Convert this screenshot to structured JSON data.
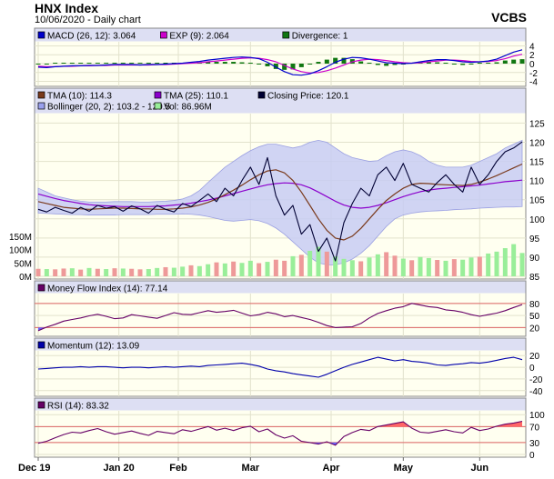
{
  "header": {
    "title": "HNX Index",
    "subtitle": "10/06/2020 - Daily chart",
    "brand": "VCBS"
  },
  "colors": {
    "macd": "#0000cc",
    "exp": "#cc00cc",
    "divergence": "#117711",
    "tma10": "#7a3a1c",
    "tma25": "#8b00cc",
    "close": "#000033",
    "bollinger": "#9aa0ee",
    "vol_up": "#99ee99",
    "vol_down": "#ee9999",
    "mfi": "#660066",
    "momentum": "#0000aa",
    "rsi": "#660066",
    "ref_line": "#dd6666",
    "hilite": "#ff6666",
    "lowlite": "#6666ff"
  },
  "chart_data": [
    {
      "id": "macd",
      "type": "line",
      "legend": [
        {
          "label": "MACD (26, 12): 3.064",
          "color_key": "macd"
        },
        {
          "label": "EXP (9): 2.064",
          "color_key": "exp"
        },
        {
          "label": "Divergence: 1",
          "color_key": "divergence"
        }
      ],
      "ylim": [
        -4.5,
        4.5
      ],
      "y_ticks": [
        4,
        2,
        0,
        -2,
        -4
      ],
      "macd": [
        -0.8,
        -0.9,
        -0.7,
        -0.6,
        -0.5,
        -0.5,
        -0.4,
        -0.4,
        -0.3,
        -0.2,
        -0.2,
        -0.2,
        -0.3,
        -0.2,
        -0.2,
        -0.1,
        0.0,
        0.1,
        0.3,
        0.5,
        0.8,
        1.0,
        1.2,
        1.4,
        1.5,
        1.4,
        1.1,
        0.3,
        -0.8,
        -1.8,
        -2.5,
        -2.6,
        -2.3,
        -1.6,
        -0.7,
        0.3,
        1.0,
        1.4,
        1.3,
        1.0,
        0.6,
        0.2,
        0.1,
        0.0,
        0.1,
        0.4,
        0.7,
        0.9,
        0.9,
        0.7,
        0.4,
        0.3,
        0.4,
        0.6,
        1.0,
        1.8,
        2.6,
        3.1
      ],
      "exp": [
        -0.6,
        -0.7,
        -0.7,
        -0.6,
        -0.6,
        -0.5,
        -0.5,
        -0.4,
        -0.4,
        -0.3,
        -0.3,
        -0.3,
        -0.3,
        -0.3,
        -0.2,
        -0.2,
        -0.1,
        0.0,
        0.1,
        0.2,
        0.4,
        0.6,
        0.8,
        1.0,
        1.2,
        1.3,
        1.2,
        0.9,
        0.4,
        -0.4,
        -1.2,
        -1.8,
        -2.1,
        -2.0,
        -1.6,
        -1.0,
        -0.3,
        0.4,
        0.8,
        1.0,
        0.9,
        0.7,
        0.4,
        0.2,
        0.1,
        0.2,
        0.4,
        0.6,
        0.8,
        0.8,
        0.7,
        0.5,
        0.4,
        0.5,
        0.7,
        1.1,
        1.7,
        2.1
      ]
    },
    {
      "id": "price",
      "type": "line",
      "legend": [
        {
          "label": "TMA (10): 114.3",
          "color_key": "tma10"
        },
        {
          "label": "TMA (25): 110.1",
          "color_key": "tma25"
        },
        {
          "label": "Closing Price: 120.1",
          "color_key": "close"
        },
        {
          "label": "Bollinger (20, 2): 103.2 - 120.5",
          "color_key": "bollinger"
        },
        {
          "label": "Vol: 86.96M",
          "color_key": "vol_up"
        }
      ],
      "ylim": [
        85,
        127
      ],
      "y_ticks": [
        125,
        120,
        115,
        110,
        105,
        100,
        95,
        90,
        85
      ],
      "close": [
        102.5,
        101.8,
        103.0,
        102.2,
        101.5,
        103.0,
        102.0,
        103.5,
        102.8,
        103.2,
        102.0,
        103.4,
        102.6,
        101.5,
        103.5,
        102.5,
        101.8,
        104.0,
        103.2,
        104.8,
        106.5,
        104.5,
        108.0,
        106.0,
        110.0,
        113.5,
        109.0,
        116.0,
        106.0,
        101.0,
        103.5,
        96.0,
        98.5,
        91.5,
        95.0,
        89.0,
        99.0,
        104.0,
        108.0,
        106.0,
        111.5,
        113.5,
        110.0,
        114.5,
        109.0,
        108.0,
        107.0,
        109.5,
        111.5,
        109.0,
        107.0,
        113.5,
        109.0,
        111.5,
        115.0,
        117.5,
        118.5,
        120.1
      ],
      "tma10": [
        104.5,
        104.0,
        103.5,
        103.0,
        102.8,
        102.6,
        102.5,
        102.6,
        102.7,
        102.8,
        102.8,
        102.7,
        102.6,
        102.6,
        102.5,
        102.5,
        102.6,
        102.8,
        103.1,
        103.6,
        104.3,
        105.2,
        106.3,
        107.5,
        108.8,
        110.2,
        111.5,
        112.5,
        112.8,
        112.0,
        110.0,
        107.0,
        103.5,
        100.0,
        97.0,
        95.0,
        94.5,
        95.5,
        97.5,
        100.0,
        102.5,
        104.8,
        106.5,
        108.0,
        109.0,
        109.3,
        109.2,
        109.0,
        108.9,
        108.8,
        108.7,
        109.0,
        109.6,
        110.4,
        111.3,
        112.3,
        113.3,
        114.3
      ],
      "tma25": [
        106.5,
        105.9,
        105.3,
        104.8,
        104.4,
        104.0,
        103.7,
        103.5,
        103.4,
        103.3,
        103.2,
        103.2,
        103.2,
        103.2,
        103.3,
        103.4,
        103.6,
        103.8,
        104.1,
        104.5,
        104.9,
        105.4,
        106.0,
        106.6,
        107.2,
        107.8,
        108.4,
        108.9,
        109.2,
        109.4,
        109.3,
        108.9,
        108.1,
        107.0,
        105.8,
        104.6,
        103.6,
        103.0,
        102.8,
        103.0,
        103.5,
        104.2,
        105.0,
        105.8,
        106.5,
        107.1,
        107.5,
        107.8,
        108.0,
        108.2,
        108.4,
        108.6,
        108.8,
        109.1,
        109.4,
        109.7,
        109.9,
        110.1
      ],
      "boll_upper": [
        108.0,
        107.0,
        106.0,
        105.5,
        105.0,
        104.6,
        104.4,
        104.4,
        104.4,
        104.5,
        104.5,
        104.5,
        104.4,
        104.4,
        104.5,
        104.6,
        104.8,
        105.2,
        106.0,
        107.4,
        109.5,
        111.5,
        113.5,
        115.0,
        116.5,
        117.8,
        118.8,
        119.5,
        119.5,
        119.0,
        118.5,
        119.0,
        120.0,
        120.5,
        120.0,
        118.5,
        117.0,
        116.0,
        115.5,
        115.0,
        115.2,
        116.5,
        117.5,
        118.0,
        117.5,
        116.5,
        115.0,
        114.0,
        113.5,
        113.5,
        113.5,
        114.0,
        115.0,
        116.0,
        117.0,
        118.5,
        119.5,
        120.5
      ],
      "boll_lower": [
        101.5,
        101.4,
        101.3,
        101.2,
        101.1,
        101.1,
        101.0,
        101.0,
        101.0,
        101.0,
        101.1,
        101.1,
        101.1,
        101.1,
        101.2,
        101.2,
        101.2,
        101.3,
        101.2,
        101.0,
        100.6,
        100.1,
        99.6,
        99.4,
        99.6,
        99.8,
        99.5,
        98.8,
        97.6,
        96.0,
        94.0,
        92.0,
        90.0,
        88.5,
        88.0,
        88.0,
        88.5,
        89.5,
        91.0,
        93.0,
        95.5,
        98.0,
        100.0,
        101.0,
        101.5,
        101.8,
        102.0,
        102.1,
        102.2,
        102.4,
        102.5,
        102.6,
        102.8,
        102.9,
        103.0,
        103.1,
        103.1,
        103.2
      ]
    },
    {
      "id": "volume",
      "type": "bar",
      "ylim": [
        0,
        200
      ],
      "y_ticks": [
        150,
        100,
        50,
        0
      ],
      "y_tick_labels": [
        "150M",
        "100M",
        "50M",
        "0M"
      ],
      "values": [
        28,
        27,
        26,
        29,
        30,
        25,
        31,
        28,
        27,
        30,
        29,
        28,
        26,
        27,
        31,
        34,
        32,
        36,
        41,
        38,
        45,
        52,
        48,
        55,
        50,
        58,
        49,
        54,
        62,
        58,
        75,
        80,
        95,
        110,
        92,
        74,
        65,
        60,
        56,
        70,
        82,
        90,
        77,
        66,
        60,
        72,
        68,
        61,
        58,
        64,
        62,
        70,
        73,
        85,
        92,
        105,
        120,
        87
      ],
      "up": [
        0,
        1,
        0,
        0,
        1,
        0,
        1,
        0,
        1,
        0,
        1,
        0,
        0,
        1,
        1,
        0,
        1,
        1,
        0,
        1,
        1,
        0,
        1,
        0,
        1,
        1,
        0,
        1,
        0,
        0,
        1,
        0,
        1,
        1,
        0,
        1,
        1,
        1,
        0,
        1,
        1,
        0,
        0,
        1,
        0,
        1,
        1,
        0,
        1,
        0,
        1,
        1,
        0,
        1,
        1,
        1,
        1,
        1
      ]
    },
    {
      "id": "mfi",
      "type": "line",
      "legend": [
        {
          "label": "Money Flow Index (14): 77.14",
          "color_key": "mfi"
        }
      ],
      "ylim": [
        5,
        100
      ],
      "y_ticks": [
        80,
        50,
        20
      ],
      "ref_lines": [
        80,
        20
      ],
      "values": [
        12,
        21,
        28,
        36,
        40,
        44,
        49,
        53,
        48,
        42,
        44,
        52,
        49,
        46,
        43,
        50,
        57,
        53,
        52,
        57,
        62,
        58,
        60,
        63,
        56,
        49,
        52,
        58,
        54,
        47,
        50,
        45,
        40,
        33,
        25,
        20,
        21,
        22,
        30,
        44,
        55,
        62,
        68,
        72,
        80,
        76,
        72,
        70,
        64,
        62,
        58,
        52,
        48,
        52,
        56,
        62,
        70,
        77.14
      ]
    },
    {
      "id": "momentum",
      "type": "line",
      "legend": [
        {
          "label": "Momentum (12): 13.09",
          "color_key": "momentum"
        }
      ],
      "ylim": [
        -45,
        25
      ],
      "y_ticks": [
        20,
        0,
        -20,
        -40
      ],
      "values": [
        -3,
        -2,
        -1,
        0,
        0,
        1,
        0,
        1,
        1,
        0,
        -1,
        0,
        0,
        -1,
        0,
        1,
        0,
        1,
        2,
        1,
        3,
        4,
        5,
        6,
        7,
        5,
        2,
        -3,
        -6,
        -8,
        -11,
        -13,
        -15,
        -17,
        -12,
        -6,
        0,
        5,
        9,
        13,
        17,
        14,
        11,
        13,
        10,
        9,
        7,
        4,
        3,
        5,
        6,
        8,
        7,
        9,
        12,
        15,
        17,
        13.09
      ]
    },
    {
      "id": "rsi",
      "type": "line",
      "legend": [
        {
          "label": "RSI (14): 83.32",
          "color_key": "rsi"
        }
      ],
      "ylim": [
        0,
        105
      ],
      "y_ticks": [
        100,
        70,
        30,
        0
      ],
      "ref_lines": [
        70,
        30
      ],
      "values": [
        28,
        33,
        42,
        50,
        56,
        54,
        60,
        65,
        57,
        51,
        55,
        59,
        53,
        48,
        58,
        55,
        52,
        62,
        58,
        64,
        70,
        61,
        66,
        60,
        67,
        71,
        57,
        64,
        49,
        41,
        47,
        33,
        30,
        26,
        32,
        23,
        45,
        55,
        63,
        60,
        70,
        74,
        78,
        82,
        66,
        56,
        54,
        58,
        62,
        57,
        54,
        68,
        60,
        64,
        71,
        76,
        79,
        83.32
      ]
    }
  ],
  "x_axis": {
    "labels": [
      {
        "text": "Dec 19",
        "index": 0
      },
      {
        "text": "Jan 20",
        "index": 9.5
      },
      {
        "text": "Feb",
        "index": 16.5
      },
      {
        "text": "Mar",
        "index": 25
      },
      {
        "text": "Apr",
        "index": 34.5
      },
      {
        "text": "May",
        "index": 43
      },
      {
        "text": "Jun",
        "index": 52
      }
    ]
  }
}
